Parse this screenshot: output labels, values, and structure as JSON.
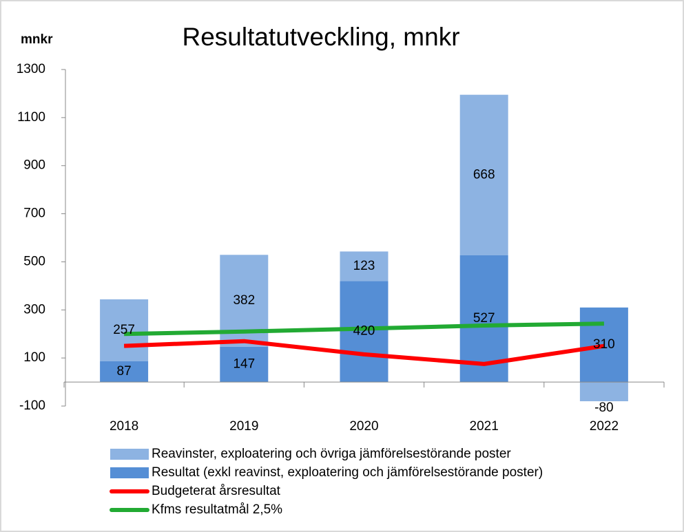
{
  "chart_data": {
    "type": "bar",
    "title": "Resultatutveckling, mnkr",
    "y_label": "mnkr",
    "categories": [
      "2018",
      "2019",
      "2020",
      "2021",
      "2022"
    ],
    "series": [
      {
        "name": "Reavinster, exploatering och övriga jämförelsestörande poster",
        "type": "bar",
        "color": "#8db3e2",
        "values": [
          257,
          382,
          123,
          668,
          -80
        ]
      },
      {
        "name": "Resultat (exkl reavinst, exploatering och jämförelsestörande poster)",
        "type": "bar",
        "color": "#558ed5",
        "values": [
          87,
          147,
          420,
          527,
          310
        ]
      },
      {
        "name": "Budgeterat årsresultat",
        "type": "line",
        "color": "#ff0000",
        "values": [
          150,
          170,
          115,
          75,
          150
        ]
      },
      {
        "name": "Kfms resultatmål 2,5%",
        "type": "line",
        "color": "#22aa33",
        "values": [
          200,
          210,
          222,
          235,
          243
        ]
      }
    ],
    "stack_order": [
      1,
      0
    ],
    "ylim": [
      -100,
      1300
    ],
    "yticks": [
      -100,
      100,
      300,
      500,
      700,
      900,
      1100,
      1300
    ]
  }
}
